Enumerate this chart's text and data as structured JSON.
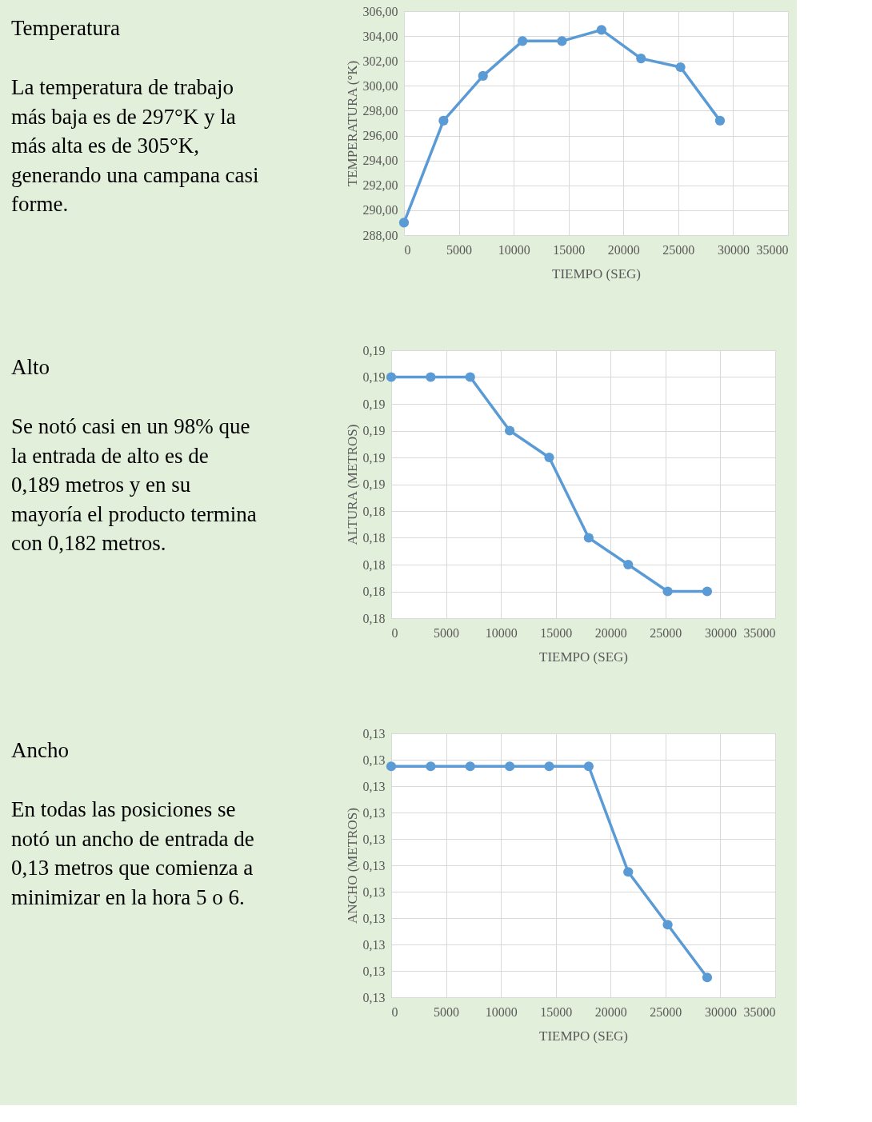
{
  "chart_data": [
    {
      "type": "other",
      "title": "Temperatura",
      "annotations": [
        "La temperatura de trabajo más baja es de 297°K y la más alta es de 305°K, generando una campana casi forme."
      ]
    },
    {
      "type": "line",
      "xlabel": "TIEMPO (SEG)",
      "ylabel": "TEMPERATURA (°K)",
      "x": [
        0,
        3600,
        7200,
        10800,
        14400,
        18000,
        21600,
        25200,
        28800
      ],
      "series": [
        {
          "color": "#5b9bd5",
          "values": [
            289.0,
            297.2,
            300.8,
            303.6,
            303.6,
            304.5,
            302.2,
            301.5,
            297.2
          ]
        }
      ],
      "xlim": [
        0,
        35000
      ],
      "xticks": [
        0,
        5000,
        10000,
        15000,
        20000,
        25000,
        30000,
        35000
      ],
      "ylim": [
        288,
        306
      ],
      "yticks": [
        {
          "value": 288,
          "label": "288,00"
        },
        {
          "value": 290,
          "label": "290,00"
        },
        {
          "value": 292,
          "label": "292,00"
        },
        {
          "value": 294,
          "label": "294,00"
        },
        {
          "value": 296,
          "label": "296,00"
        },
        {
          "value": 298,
          "label": "298,00"
        },
        {
          "value": 300,
          "label": "300,00"
        },
        {
          "value": 302,
          "label": "302,00"
        },
        {
          "value": 304,
          "label": "304,00"
        },
        {
          "value": 306,
          "label": "306,00"
        }
      ],
      "grid": true,
      "marker": "circle",
      "line_style": "solid"
    },
    {
      "type": "other",
      "title": "Alto",
      "annotations": [
        "Se notó casi en un 98% que la entrada de alto es de 0,189 metros y en su mayoría el producto termina con 0,182 metros."
      ]
    },
    {
      "type": "line",
      "xlabel": "TIEMPO (SEG)",
      "ylabel": "ALTURA (METROS)",
      "x": [
        0,
        3600,
        7200,
        10800,
        14400,
        18000,
        21600,
        25200,
        28800
      ],
      "series": [
        {
          "color": "#5b9bd5",
          "values": [
            0.189,
            0.189,
            0.189,
            0.187,
            0.186,
            0.183,
            0.182,
            0.181,
            0.181
          ]
        }
      ],
      "xlim": [
        0,
        35000
      ],
      "xticks": [
        0,
        5000,
        10000,
        15000,
        20000,
        25000,
        30000,
        35000
      ],
      "ylim": [
        0.18,
        0.19
      ],
      "yticks": [
        {
          "value": 0.18,
          "label": "0,18"
        },
        {
          "value": 0.181,
          "label": "0,18"
        },
        {
          "value": 0.182,
          "label": "0,18"
        },
        {
          "value": 0.183,
          "label": "0,18"
        },
        {
          "value": 0.184,
          "label": "0,18"
        },
        {
          "value": 0.185,
          "label": "0,19"
        },
        {
          "value": 0.186,
          "label": "0,19"
        },
        {
          "value": 0.187,
          "label": "0,19"
        },
        {
          "value": 0.188,
          "label": "0,19"
        },
        {
          "value": 0.189,
          "label": "0,19"
        },
        {
          "value": 0.19,
          "label": "0,19"
        }
      ],
      "grid": true,
      "marker": "circle",
      "line_style": "solid"
    },
    {
      "type": "other",
      "title": "Ancho",
      "annotations": [
        "En todas las posiciones se notó un ancho de entrada de 0,13 metros que comienza a minimizar en la hora 5 o 6."
      ]
    },
    {
      "type": "line",
      "xlabel": "TIEMPO (SEG)",
      "ylabel": "ANCHO (METROS)",
      "x": [
        0,
        3600,
        7200,
        10800,
        14400,
        18000,
        21600,
        25200,
        28800
      ],
      "series": [
        {
          "color": "#5b9bd5",
          "values": [
            0.133,
            0.133,
            0.133,
            0.133,
            0.133,
            0.133,
            0.1298,
            0.1282,
            0.1266
          ]
        }
      ],
      "xlim": [
        0,
        35000
      ],
      "xticks": [
        0,
        5000,
        10000,
        15000,
        20000,
        25000,
        30000,
        35000
      ],
      "ylim": [
        0.126,
        0.134
      ],
      "yticks": [
        {
          "value": 0.126,
          "label": "0,13"
        },
        {
          "value": 0.1268,
          "label": "0,13"
        },
        {
          "value": 0.1276,
          "label": "0,13"
        },
        {
          "value": 0.1284,
          "label": "0,13"
        },
        {
          "value": 0.1292,
          "label": "0,13"
        },
        {
          "value": 0.13,
          "label": "0,13"
        },
        {
          "value": 0.1308,
          "label": "0,13"
        },
        {
          "value": 0.1316,
          "label": "0,13"
        },
        {
          "value": 0.1324,
          "label": "0,13"
        },
        {
          "value": 0.1332,
          "label": "0,13"
        },
        {
          "value": 0.134,
          "label": "0,13"
        }
      ],
      "grid": true,
      "marker": "circle",
      "line_style": "solid"
    }
  ]
}
